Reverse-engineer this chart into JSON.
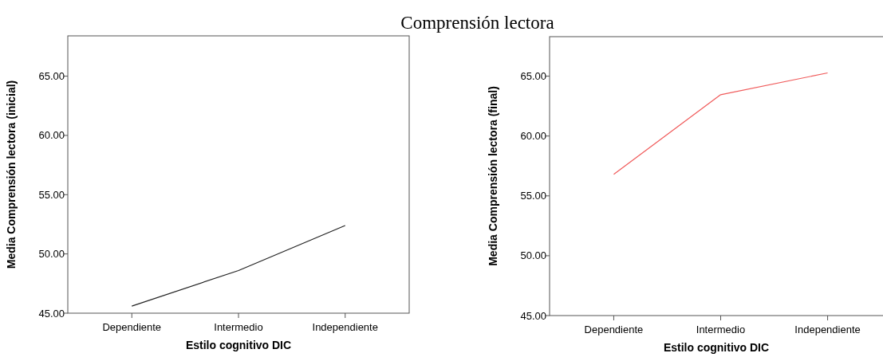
{
  "chart_data": [
    {
      "type": "line",
      "title": "Comprensión lectora",
      "xlabel": "Estilo cognitivo DIC",
      "ylabel": "Media Comprensión lectora (inicial)",
      "categories": [
        "Dependiente",
        "Intermedio",
        "Independiente"
      ],
      "series": [
        {
          "color": "#222222",
          "values": [
            45.6,
            48.6,
            52.4
          ]
        }
      ],
      "ylim": [
        45,
        68.4
      ],
      "yticks": [
        {
          "value": 45,
          "label": "45.00"
        },
        {
          "value": 50,
          "label": "50.00"
        },
        {
          "value": 55,
          "label": "55.00"
        },
        {
          "value": 60,
          "label": "60.00"
        },
        {
          "value": 65,
          "label": "65.00"
        }
      ]
    },
    {
      "type": "line",
      "xlabel": "Estilo cognitivo DIC",
      "ylabel": "Media Comprensión lectora (final)",
      "categories": [
        "Dependiente",
        "Intermedio",
        "Independiente"
      ],
      "series": [
        {
          "color": "#f05a5a",
          "values": [
            56.8,
            63.45,
            65.27
          ]
        }
      ],
      "ylim": [
        45,
        68.3
      ],
      "yticks": [
        {
          "value": 45,
          "label": "45.00"
        },
        {
          "value": 50,
          "label": "50.00"
        },
        {
          "value": 55,
          "label": "55.00"
        },
        {
          "value": 60,
          "label": "60.00"
        },
        {
          "value": 65,
          "label": "65.00"
        }
      ]
    }
  ]
}
